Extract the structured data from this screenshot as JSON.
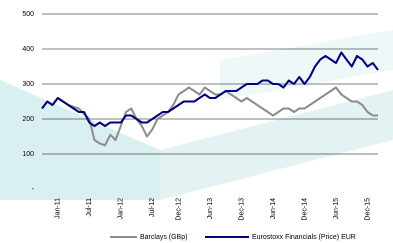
{
  "chart_data": {
    "type": "line",
    "categories": [
      null,
      null,
      null,
      "Jan-11",
      null,
      null,
      null,
      null,
      null,
      "Jul-11",
      null,
      null,
      null,
      null,
      null,
      "Jan-12",
      null,
      null,
      null,
      null,
      null,
      "Jul-12",
      null,
      null,
      null,
      null,
      "Dec-12",
      null,
      null,
      null,
      null,
      null,
      "Jun-13",
      null,
      null,
      null,
      null,
      null,
      "Dec-13",
      null,
      null,
      null,
      null,
      null,
      "Jun-14",
      null,
      null,
      null,
      null,
      null,
      "Dec-14",
      null,
      null,
      null,
      null,
      null,
      "Jun-15",
      null,
      null,
      null,
      null,
      null,
      "Dec-15",
      null,
      null
    ],
    "series": [
      {
        "name": "Barclays (GBp)",
        "color": "#8c8c8c",
        "values": [
          230,
          250,
          240,
          260,
          250,
          240,
          235,
          230,
          215,
          200,
          140,
          130,
          125,
          155,
          140,
          180,
          220,
          230,
          200,
          180,
          150,
          170,
          200,
          210,
          220,
          240,
          270,
          280,
          290,
          280,
          270,
          290,
          280,
          270,
          270,
          280,
          270,
          260,
          250,
          260,
          250,
          240,
          230,
          220,
          210,
          220,
          230,
          230,
          220,
          230,
          230,
          240,
          250,
          260,
          270,
          280,
          290,
          270,
          260,
          250,
          250,
          240,
          220,
          210,
          210
        ]
      },
      {
        "name": "Eurostoxx Financials (Price) EUR",
        "color": "#000080",
        "values": [
          230,
          250,
          240,
          260,
          250,
          240,
          230,
          220,
          220,
          190,
          180,
          190,
          180,
          190,
          190,
          190,
          210,
          210,
          200,
          190,
          190,
          200,
          210,
          220,
          220,
          230,
          240,
          250,
          250,
          250,
          260,
          270,
          260,
          260,
          270,
          280,
          280,
          280,
          290,
          300,
          300,
          300,
          310,
          310,
          300,
          300,
          290,
          310,
          300,
          320,
          300,
          320,
          350,
          370,
          380,
          370,
          360,
          390,
          370,
          350,
          380,
          370,
          350,
          360,
          340
        ]
      }
    ],
    "ylim": [
      0,
      500
    ],
    "yticks": [
      {
        "value": 0,
        "label": "-"
      },
      100,
      200,
      300,
      400,
      500
    ],
    "grid": true
  }
}
